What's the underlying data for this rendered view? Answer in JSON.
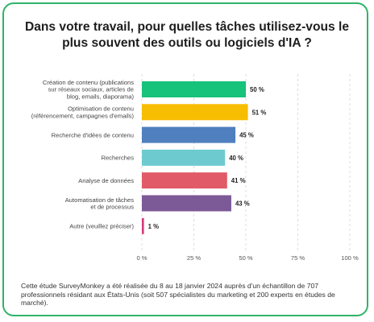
{
  "title": "Dans votre travail, pour quelles tâches utilisez-vous le plus souvent des outils ou logiciels d'IA ?",
  "footnote": "Cette étude SurveyMonkey a été réalisée du 8 au 18 janvier 2024 auprès d'un échantillon de 707 professionnels résidant aux États-Unis (soit 507 spécialistes du marketing et 200 experts en études de marché).",
  "chart_data": {
    "type": "bar",
    "orientation": "horizontal",
    "title": "Dans votre travail, pour quelles tâches utilisez-vous le plus souvent des outils ou logiciels d'IA ?",
    "xlabel": "",
    "ylabel": "",
    "xlim": [
      0,
      100
    ],
    "grid": true,
    "categories": [
      [
        "Création de contenu (publications",
        "sur réseaux sociaux, articles de",
        "blog, emails, diaporama)"
      ],
      [
        "Optimisation de contenu",
        "(référencement, campagnes d'emails)"
      ],
      [
        "Recherche d'idées de contenu"
      ],
      [
        "Recherches"
      ],
      [
        "Analyse de données"
      ],
      [
        "Automatisation de tâches",
        "et de processus"
      ],
      [
        "Autre (veuillez préciser)"
      ]
    ],
    "values": [
      50,
      51,
      45,
      40,
      41,
      43,
      1
    ],
    "value_labels": [
      "50 %",
      "51 %",
      "45 %",
      "40 %",
      "41 %",
      "43 %",
      "1 %"
    ],
    "colors": [
      "#17c27a",
      "#f7bd00",
      "#4f7fbe",
      "#6dcbd0",
      "#e05a67",
      "#7c5997",
      "#d63a7c"
    ],
    "ticks": [
      0,
      25,
      50,
      75,
      100
    ],
    "tick_labels": [
      "0 %",
      "25 %",
      "50 %",
      "75 %",
      "100 %"
    ]
  }
}
